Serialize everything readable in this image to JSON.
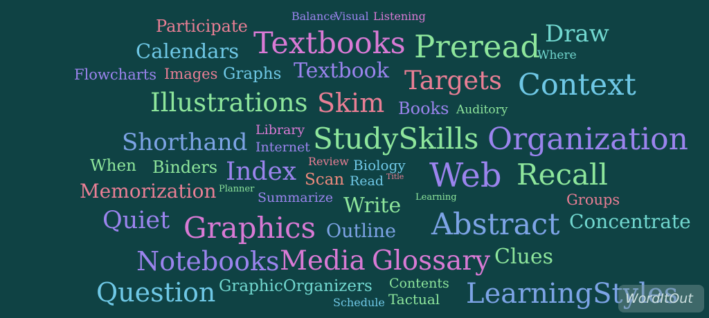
{
  "words": {
    "participate": "Participate",
    "balance": "Balance",
    "visual": "Visual",
    "listening": "Listening",
    "calendars": "Calendars",
    "textbooks": "Textbooks",
    "preread": "Preread",
    "draw": "Draw",
    "where": "Where",
    "flowcharts": "Flowcharts",
    "images": "Images",
    "graphs": "Graphs",
    "textbook": "Textbook",
    "targets": "Targets",
    "context": "Context",
    "illustrations": "Illustrations",
    "skim": "Skim",
    "books": "Books",
    "auditory": "Auditory",
    "shorthand": "Shorthand",
    "library": "Library",
    "internet": "Internet",
    "studyskills": "StudySkills",
    "organization": "Organization",
    "when": "When",
    "binders": "Binders",
    "index": "Index",
    "review": "Review",
    "biology": "Biology",
    "scan": "Scan",
    "read": "Read",
    "title": "Title",
    "web": "Web",
    "recall": "Recall",
    "memorization": "Memorization",
    "planner": "Planner",
    "summarize": "Summarize",
    "write": "Write",
    "learning": "Learning",
    "groups": "Groups",
    "quiet": "Quiet",
    "graphics": "Graphics",
    "outline": "Outline",
    "abstract": "Abstract",
    "concentrate": "Concentrate",
    "notebooks": "Notebooks",
    "media": "Media",
    "glossary": "Glossary",
    "clues": "Clues",
    "question": "Question",
    "graphicorganizers": "GraphicOrganizers",
    "contents": "Contents",
    "schedule": "Schedule",
    "tactual": "Tactual",
    "learningstyles": "LearningStyles"
  },
  "watermark": "WordItOut",
  "colors": {
    "background": "#0f4244",
    "pink": "#ea7f95",
    "magenta": "#d97ad5",
    "violet": "#9b84ee",
    "blue": "#7da4e6",
    "sky": "#6fc8e6",
    "mint": "#8ee69c",
    "aqua": "#72d8d0",
    "peach": "#f08b7e"
  }
}
